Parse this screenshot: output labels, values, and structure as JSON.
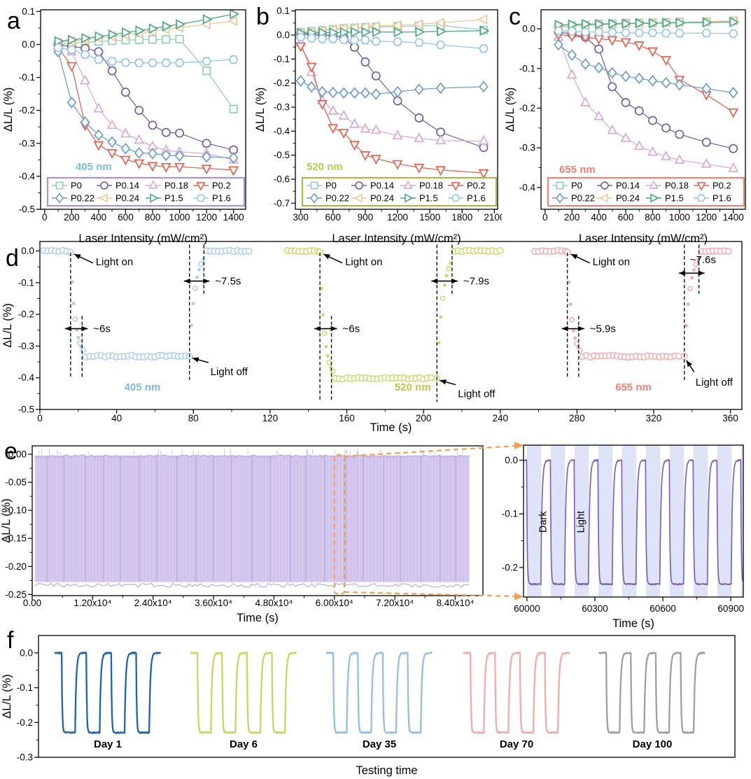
{
  "panel_letters": {
    "a": "a",
    "b": "b",
    "c": "c",
    "d": "d",
    "e": "e",
    "f": "f"
  },
  "series_legend": [
    {
      "name": "P0",
      "marker": "square",
      "color": "#8fd0b6"
    },
    {
      "name": "P0.14",
      "marker": "circle",
      "color": "#6f5fa0"
    },
    {
      "name": "P0.18",
      "marker": "triangle-up",
      "color": "#d9a9d6"
    },
    {
      "name": "P0.2",
      "marker": "triangle-down",
      "color": "#e5604d"
    },
    {
      "name": "P0.22",
      "marker": "diamond",
      "color": "#6b9ccc"
    },
    {
      "name": "P0.24",
      "marker": "triangle-left",
      "color": "#f2c795"
    },
    {
      "name": "P1.5",
      "marker": "triangle-right",
      "color": "#4aa788"
    },
    {
      "name": "P1.6",
      "marker": "hexagon",
      "color": "#92c5e8"
    }
  ],
  "chart_data": {
    "a": {
      "type": "line-scatter",
      "wavelength": "405 nm",
      "wavelength_color": "#7fb9e0",
      "legend_border": "#a897cf",
      "xlabel": "Laser Intensity (mW/cm²)",
      "ylabel": "ΔL/L (%)",
      "xlim": [
        -30,
        1490
      ],
      "ylim": [
        -0.5,
        0.105
      ],
      "xticks": [
        0,
        200,
        400,
        600,
        800,
        1000,
        1200,
        1400
      ],
      "xtick_labels": [
        "0",
        "200",
        "400",
        "600",
        "800",
        "1000",
        "1200",
        "1400"
      ],
      "yticks": [
        0.1,
        0,
        -0.1,
        -0.2,
        -0.3,
        -0.4,
        -0.5
      ],
      "ytick_labels": [
        "0.1",
        "0.0",
        "-0.1",
        "-0.2",
        "-0.3",
        "-0.4",
        "-0.5"
      ],
      "x": [
        100,
        200,
        300,
        400,
        500,
        600,
        700,
        800,
        900,
        1000,
        1200,
        1400
      ],
      "series": {
        "P0": [
          0.0,
          0.004,
          0.006,
          0.009,
          0.011,
          0.013,
          0.014,
          0.015,
          0.015,
          0.016,
          -0.08,
          -0.196
        ],
        "P0.14": [
          -0.002,
          -0.006,
          -0.012,
          -0.022,
          -0.08,
          -0.145,
          -0.2,
          -0.245,
          -0.267,
          -0.269,
          -0.3,
          -0.32
        ],
        "P0.18": [
          -0.005,
          -0.022,
          -0.11,
          -0.195,
          -0.245,
          -0.271,
          -0.29,
          -0.309,
          -0.321,
          -0.326,
          -0.331,
          -0.35
        ],
        "P0.2": [
          -0.01,
          -0.065,
          -0.245,
          -0.305,
          -0.329,
          -0.349,
          -0.36,
          -0.368,
          -0.371,
          -0.371,
          -0.376,
          -0.381
        ],
        "P0.22": [
          -0.022,
          -0.176,
          -0.236,
          -0.275,
          -0.296,
          -0.316,
          -0.329,
          -0.331,
          -0.336,
          -0.338,
          -0.341,
          -0.344
        ],
        "P0.24": [
          0.006,
          0.01,
          0.014,
          0.019,
          0.024,
          0.028,
          0.033,
          0.04,
          0.046,
          0.051,
          0.061,
          0.071
        ],
        "P1.5": [
          0.01,
          0.014,
          0.019,
          0.024,
          0.03,
          0.036,
          0.042,
          0.048,
          0.055,
          0.061,
          0.076,
          0.092
        ],
        "P1.6": [
          -0.01,
          -0.016,
          -0.031,
          -0.046,
          -0.051,
          -0.055,
          -0.056,
          -0.056,
          -0.056,
          -0.056,
          -0.051,
          -0.046
        ]
      }
    },
    "b": {
      "type": "line-scatter",
      "wavelength": "520 nm",
      "wavelength_color": "#b5cc4a",
      "legend_border": "#b0b24a",
      "xlabel": "Laser Intensity (mW/cm²)",
      "ylabel": "ΔL/L (%)",
      "xlim": [
        250,
        2130
      ],
      "ylim": [
        -0.725,
        0.105
      ],
      "xticks": [
        300,
        600,
        900,
        1200,
        1500,
        1800,
        2100
      ],
      "xtick_labels": [
        "300",
        "600",
        "900",
        "1200",
        "1500",
        "1800",
        "2100"
      ],
      "yticks": [
        0.1,
        0,
        -0.1,
        -0.2,
        -0.3,
        -0.4,
        -0.5,
        -0.6,
        -0.7
      ],
      "ytick_labels": [
        "0.1",
        "0.0",
        "-0.1",
        "-0.2",
        "-0.3",
        "-0.4",
        "-0.5",
        "-0.6",
        "-0.7"
      ],
      "x": [
        300,
        400,
        500,
        600,
        700,
        800,
        900,
        1000,
        1200,
        1400,
        1600,
        2000
      ],
      "series": {
        "P0": [
          0.012,
          0.016,
          0.02,
          0.024,
          0.027,
          0.03,
          0.032,
          0.034,
          0.036,
          0.038,
          0.04,
          0.021
        ],
        "P0.14": [
          0.005,
          0.002,
          0.0,
          -0.004,
          -0.01,
          -0.051,
          -0.112,
          -0.17,
          -0.274,
          -0.345,
          -0.404,
          -0.468
        ],
        "P0.18": [
          -0.032,
          -0.155,
          -0.271,
          -0.316,
          -0.336,
          -0.371,
          -0.391,
          -0.396,
          -0.419,
          -0.43,
          -0.439,
          -0.441
        ],
        "P0.2": [
          -0.046,
          -0.131,
          -0.286,
          -0.386,
          -0.406,
          -0.456,
          -0.499,
          -0.514,
          -0.536,
          -0.551,
          -0.561,
          -0.574
        ],
        "P0.22": [
          -0.191,
          -0.216,
          -0.236,
          -0.239,
          -0.241,
          -0.241,
          -0.241,
          -0.246,
          -0.236,
          -0.226,
          -0.221,
          -0.215
        ],
        "P0.24": [
          0.01,
          0.014,
          0.018,
          0.023,
          0.028,
          0.031,
          0.034,
          0.037,
          0.041,
          0.045,
          0.051,
          0.065
        ],
        "P1.5": [
          0.008,
          0.009,
          0.01,
          0.01,
          0.011,
          0.012,
          0.012,
          0.013,
          0.012,
          0.013,
          0.015,
          0.018
        ],
        "P1.6": [
          -0.009,
          -0.013,
          -0.016,
          -0.016,
          -0.019,
          -0.021,
          -0.021,
          -0.026,
          -0.028,
          -0.031,
          -0.041,
          -0.056
        ]
      }
    },
    "c": {
      "type": "line-scatter",
      "wavelength": "655 nm",
      "wavelength_color": "#f08273",
      "legend_border": "#f28475",
      "xlabel": "Laser Intensity (mW/cm²)",
      "ylabel": "ΔL/L (%)",
      "xlim": [
        -30,
        1490
      ],
      "ylim": [
        -0.455,
        0.048
      ],
      "xticks": [
        0,
        200,
        400,
        600,
        800,
        1000,
        1200,
        1400
      ],
      "xtick_labels": [
        "0",
        "200",
        "400",
        "600",
        "800",
        "1000",
        "1200",
        "1400"
      ],
      "yticks": [
        0,
        -0.1,
        -0.2,
        -0.3,
        -0.4
      ],
      "ytick_labels": [
        "0.0",
        "-0.1",
        "-0.2",
        "-0.3",
        "-0.4"
      ],
      "x": [
        100,
        200,
        300,
        400,
        500,
        600,
        700,
        800,
        900,
        1000,
        1200,
        1400
      ],
      "series": {
        "P0": [
          0.006,
          0.008,
          0.01,
          0.012,
          0.013,
          0.014,
          0.015,
          0.015,
          0.016,
          0.017,
          0.018,
          0.02
        ],
        "P0.14": [
          -0.008,
          -0.013,
          -0.021,
          -0.051,
          -0.146,
          -0.186,
          -0.207,
          -0.231,
          -0.25,
          -0.266,
          -0.286,
          -0.302
        ],
        "P0.18": [
          -0.021,
          -0.116,
          -0.186,
          -0.221,
          -0.256,
          -0.276,
          -0.296,
          -0.311,
          -0.322,
          -0.331,
          -0.341,
          -0.352
        ],
        "P0.2": [
          -0.014,
          -0.018,
          -0.021,
          -0.025,
          -0.028,
          -0.033,
          -0.041,
          -0.056,
          -0.078,
          -0.128,
          -0.166,
          -0.21
        ],
        "P0.22": [
          -0.04,
          -0.066,
          -0.089,
          -0.098,
          -0.111,
          -0.12,
          -0.125,
          -0.131,
          -0.136,
          -0.141,
          -0.151,
          -0.161
        ],
        "P0.24": [
          0.004,
          0.006,
          0.008,
          0.01,
          0.011,
          0.013,
          0.014,
          0.015,
          0.016,
          0.017,
          0.018,
          0.021
        ],
        "P1.5": [
          0.01,
          0.011,
          0.012,
          0.012,
          0.013,
          0.013,
          0.014,
          0.014,
          0.015,
          0.015,
          0.016,
          0.017
        ],
        "P1.6": [
          -0.005,
          -0.006,
          -0.008,
          -0.008,
          -0.009,
          -0.01,
          -0.01,
          -0.01,
          -0.011,
          -0.011,
          -0.011,
          -0.012
        ]
      }
    },
    "d": {
      "type": "kinetics",
      "xlabel": "Time (s)",
      "ylabel": "ΔL/L (%)",
      "xlim": [
        0,
        366
      ],
      "ylim": [
        -0.5,
        0.03
      ],
      "xticks": [
        0,
        40,
        80,
        120,
        160,
        200,
        240,
        280,
        320,
        360
      ],
      "xtick_labels": [
        "0",
        "40",
        "80",
        "120",
        "160",
        "200",
        "240",
        "280",
        "320",
        "360"
      ],
      "yticks": [
        0,
        -0.1,
        -0.2,
        -0.3,
        -0.4,
        -0.5
      ],
      "ytick_labels": [
        "0.0",
        "-0.1",
        "-0.2",
        "-0.3",
        "-0.4",
        "-0.5"
      ],
      "groups": [
        {
          "label": "405 nm",
          "label_color": "#7fb9e0",
          "color": "#a9cfe9",
          "t_start": 2,
          "t_on": 16,
          "fall_s": 6,
          "t_off": 78,
          "rise_s": 7.5,
          "t_end": 110,
          "min": -0.332,
          "light_on_label": "Light on",
          "light_off_label": "Light off",
          "fall_label": "~6s",
          "rise_label": "~7.5s",
          "label_x": 44
        },
        {
          "label": "520 nm",
          "label_color": "#b5cc4a",
          "color": "#cbda6e",
          "t_start": 129,
          "t_on": 146,
          "fall_s": 6,
          "t_off": 207,
          "rise_s": 7.9,
          "t_end": 240,
          "min": -0.402,
          "light_on_label": "Light on",
          "light_off_label": "Light off",
          "fall_label": "~6s",
          "rise_label": "~7.9s",
          "label_x": 185
        },
        {
          "label": "655 nm",
          "label_color": "#f08273",
          "color": "#f6abb2",
          "t_start": 258,
          "t_on": 275,
          "fall_s": 5.9,
          "t_off": 336,
          "rise_s": 7.6,
          "t_end": 359,
          "min": -0.332,
          "light_on_label": "Light on",
          "light_off_label": "Light off",
          "fall_label": "~5.9s",
          "rise_label": "~7.6s",
          "label_x": 300
        }
      ]
    },
    "e": {
      "type": "cycling-endurance",
      "main": {
        "xlabel": "Time (s)",
        "ylabel": "ΔL/L (%)",
        "xlim": [
          0,
          89500
        ],
        "ylim": [
          -0.252,
          0.015
        ],
        "xticks": [
          0,
          12000,
          24000,
          36000,
          48000,
          60000,
          72000,
          84000
        ],
        "xtick_labels": [
          "0.00",
          "1.20x10⁴",
          "2.40x10⁴",
          "3.60x10⁴",
          "4.80x10⁴",
          "6.00x10⁴",
          "7.20x10⁴",
          "8.40x10⁴"
        ],
        "yticks": [
          0,
          -0.05,
          -0.1,
          -0.15,
          -0.2,
          -0.25
        ],
        "ytick_labels": [
          "0.00",
          "-0.05",
          "-0.10",
          "-0.15",
          "-0.20",
          "-0.25"
        ],
        "amplitude": -0.23,
        "period_s": 105,
        "n_cycles": 800,
        "band_xrange": [
          500,
          86800
        ],
        "zoom_box_xrange": [
          60000,
          62000
        ],
        "zoom_color": "#f0a055",
        "fill_color": "#d6c9ee",
        "line_color": "#8b72c0"
      },
      "inset": {
        "xlabel": "Time (s)",
        "xlim": [
          59985,
          60955
        ],
        "ylim": [
          -0.255,
          0.028
        ],
        "xticks": [
          60000,
          60300,
          60600,
          60900
        ],
        "xtick_labels": [
          "60000",
          "60300",
          "60600",
          "60900"
        ],
        "yticks": [
          0,
          -0.1,
          -0.2
        ],
        "ytick_labels": [
          "0.0",
          "-0.1",
          "-0.2"
        ],
        "dark_label": "Dark",
        "light_label": "Light",
        "cycle_start": 60000,
        "period_s": 105,
        "light_duration_s": 63,
        "amplitude": -0.231,
        "band_color": "#dfe3f8",
        "line_color": "#7d62b5"
      }
    },
    "f": {
      "type": "stability-days",
      "xlabel": "Testing time",
      "ylabel": "ΔL/L (%)",
      "ylim": [
        -0.3,
        0.05
      ],
      "yticks": [
        0,
        -0.1,
        -0.2,
        -0.3
      ],
      "ytick_labels": [
        "0.0",
        "-0.1",
        "-0.2",
        "-0.3"
      ],
      "amplitude": -0.229,
      "cycles_per_group": 4,
      "groups": [
        {
          "label": "Day 1",
          "color": "#1d64ae"
        },
        {
          "label": "Day 6",
          "color": "#c6d65e"
        },
        {
          "label": "Day 35",
          "color": "#90c0e4"
        },
        {
          "label": "Day 70",
          "color": "#f6aaa2"
        },
        {
          "label": "Day 100",
          "color": "#9f9f9f"
        }
      ]
    }
  }
}
